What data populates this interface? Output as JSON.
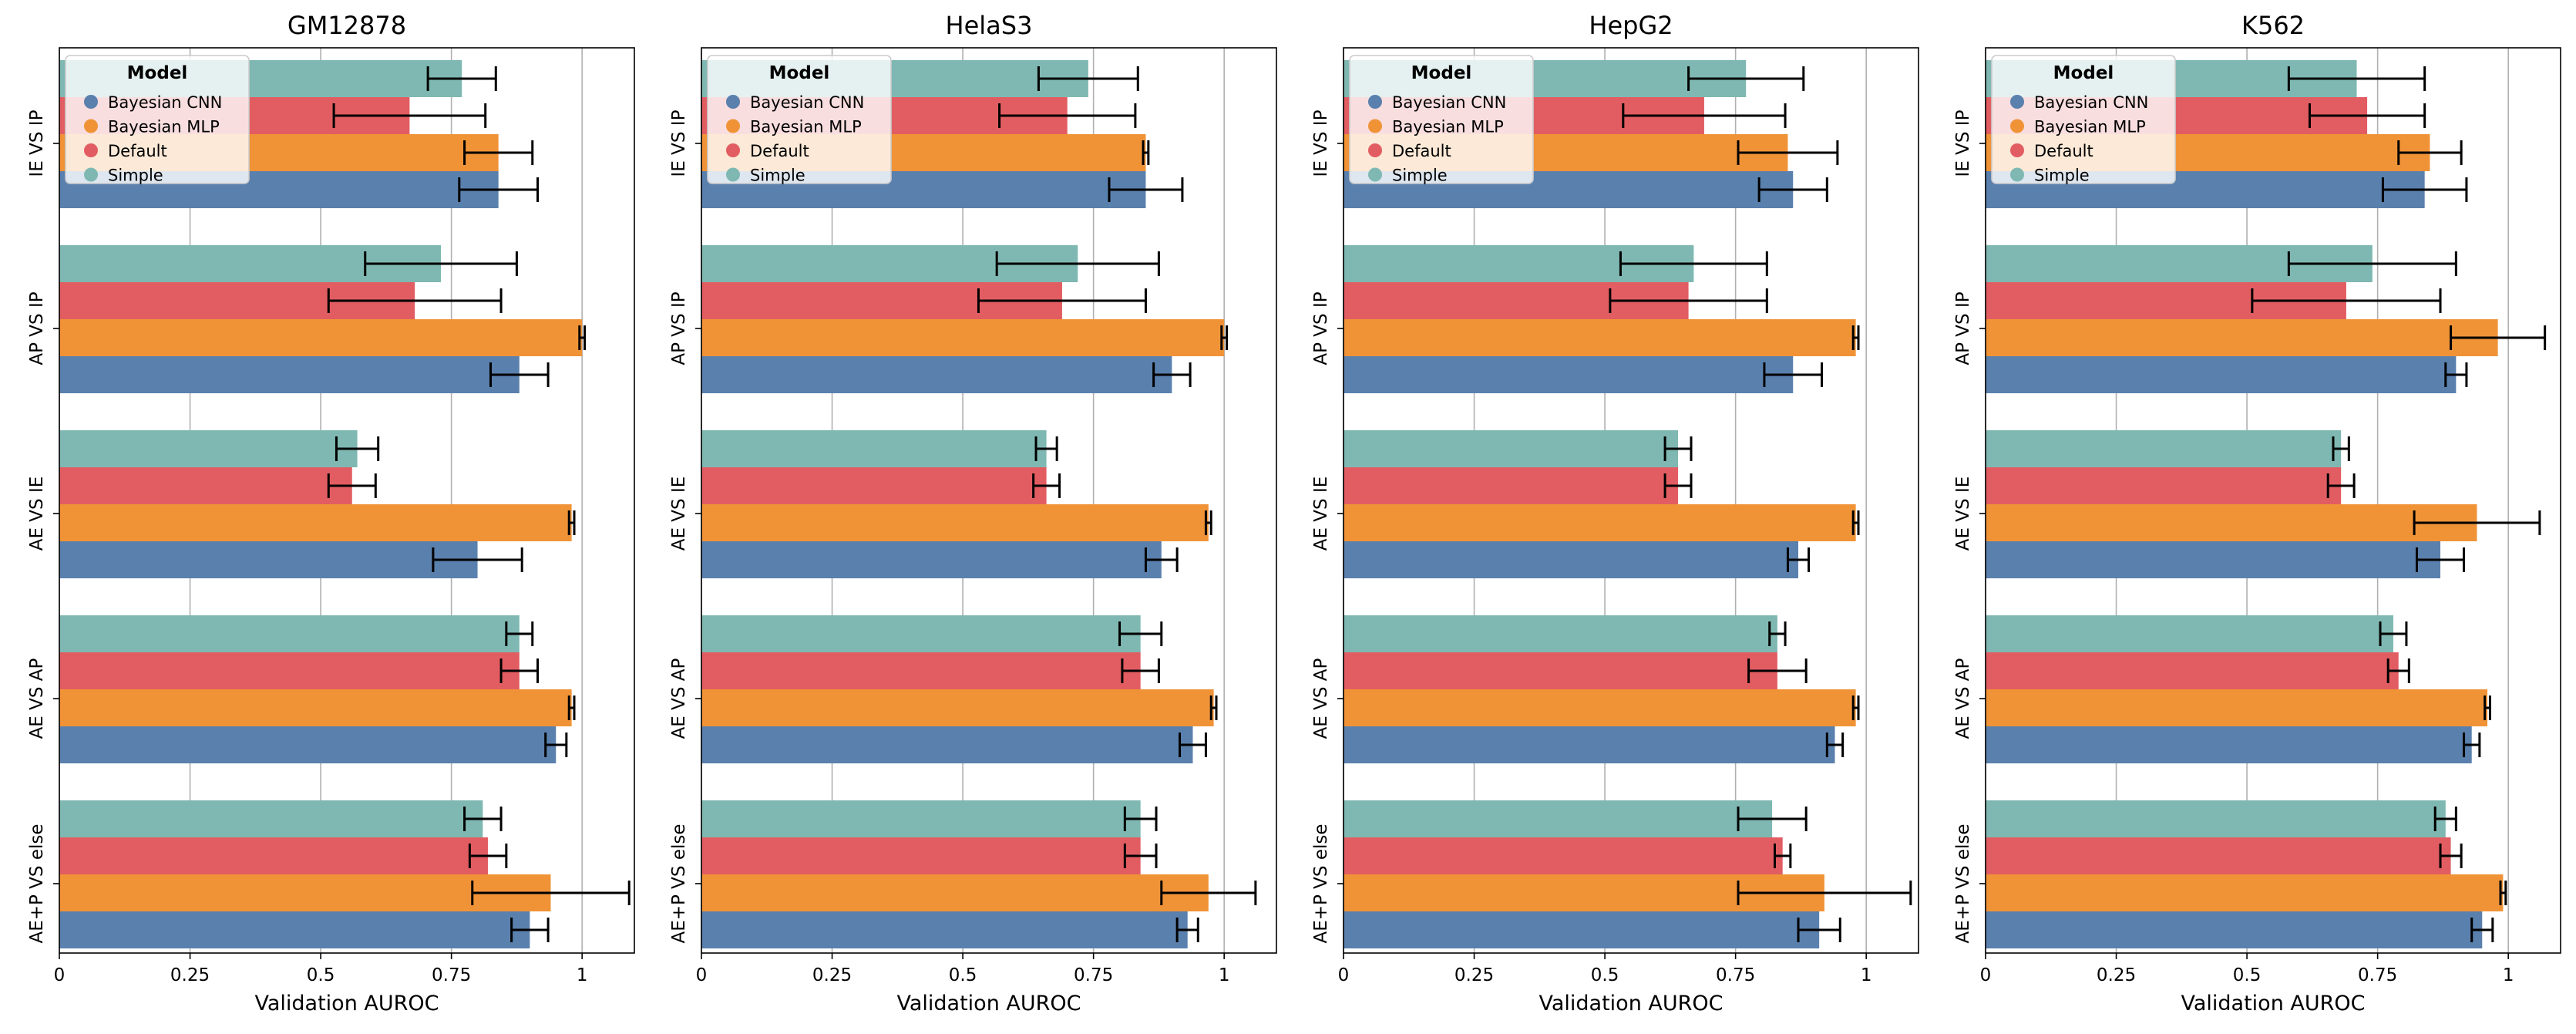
{
  "figure": {
    "xlabel": "Validation AUROC",
    "xlim": [
      0,
      1.1
    ],
    "xticks": [
      0,
      0.25,
      0.5,
      0.75,
      1
    ],
    "xtick_labels": [
      "0",
      "0.25",
      "0.5",
      "0.75",
      "1"
    ],
    "categories": [
      "IE VS IP",
      "AP VS IP",
      "AE VS IE",
      "AE VS AP",
      "AE+P VS else"
    ],
    "legend_title": "Model",
    "models": [
      "Bayesian CNN",
      "Bayesian MLP",
      "Default",
      "Simple"
    ],
    "colors": {
      "Bayesian CNN": "#5a80ad",
      "Bayesian MLP": "#f09337",
      "Default": "#e25d62",
      "Simple": "#7fb8b2"
    },
    "legend_placement": "upper-left",
    "grid": "vertical"
  },
  "chart_data": [
    {
      "type": "bar",
      "orientation": "horizontal",
      "title": "GM12878",
      "xlabel": "Validation AUROC",
      "xlim": [
        0,
        1.1
      ],
      "categories": [
        "IE VS IP",
        "AP VS IP",
        "AE VS IE",
        "AE VS AP",
        "AE+P VS else"
      ],
      "series": [
        {
          "name": "Simple",
          "values": [
            0.77,
            0.73,
            0.57,
            0.88,
            0.81
          ],
          "errors": [
            0.065,
            0.145,
            0.04,
            0.025,
            0.035
          ]
        },
        {
          "name": "Default",
          "values": [
            0.67,
            0.68,
            0.56,
            0.88,
            0.82
          ],
          "errors": [
            0.145,
            0.165,
            0.045,
            0.035,
            0.035
          ]
        },
        {
          "name": "Bayesian MLP",
          "values": [
            0.84,
            1.0,
            0.98,
            0.98,
            0.94
          ],
          "errors": [
            0.065,
            0.005,
            0.005,
            0.005,
            0.15
          ]
        },
        {
          "name": "Bayesian CNN",
          "values": [
            0.84,
            0.88,
            0.8,
            0.95,
            0.9
          ],
          "errors": [
            0.075,
            0.055,
            0.085,
            0.02,
            0.035
          ]
        }
      ]
    },
    {
      "type": "bar",
      "orientation": "horizontal",
      "title": "HelaS3",
      "xlabel": "Validation AUROC",
      "xlim": [
        0,
        1.1
      ],
      "categories": [
        "IE VS IP",
        "AP VS IP",
        "AE VS IE",
        "AE VS AP",
        "AE+P VS else"
      ],
      "series": [
        {
          "name": "Simple",
          "values": [
            0.74,
            0.72,
            0.66,
            0.84,
            0.84
          ],
          "errors": [
            0.095,
            0.155,
            0.02,
            0.04,
            0.03
          ]
        },
        {
          "name": "Default",
          "values": [
            0.7,
            0.69,
            0.66,
            0.84,
            0.84
          ],
          "errors": [
            0.13,
            0.16,
            0.025,
            0.035,
            0.03
          ]
        },
        {
          "name": "Bayesian MLP",
          "values": [
            0.85,
            1.0,
            0.97,
            0.98,
            0.97
          ],
          "errors": [
            0.005,
            0.005,
            0.005,
            0.005,
            0.09
          ]
        },
        {
          "name": "Bayesian CNN",
          "values": [
            0.85,
            0.9,
            0.88,
            0.94,
            0.93
          ],
          "errors": [
            0.07,
            0.035,
            0.03,
            0.025,
            0.02
          ]
        }
      ]
    },
    {
      "type": "bar",
      "orientation": "horizontal",
      "title": "HepG2",
      "xlabel": "Validation AUROC",
      "xlim": [
        0,
        1.1
      ],
      "categories": [
        "IE VS IP",
        "AP VS IP",
        "AE VS IE",
        "AE VS AP",
        "AE+P VS else"
      ],
      "series": [
        {
          "name": "Simple",
          "values": [
            0.77,
            0.67,
            0.64,
            0.83,
            0.82
          ],
          "errors": [
            0.11,
            0.14,
            0.025,
            0.015,
            0.065
          ]
        },
        {
          "name": "Default",
          "values": [
            0.69,
            0.66,
            0.64,
            0.83,
            0.84
          ],
          "errors": [
            0.155,
            0.15,
            0.025,
            0.055,
            0.015
          ]
        },
        {
          "name": "Bayesian MLP",
          "values": [
            0.85,
            0.98,
            0.98,
            0.98,
            0.92
          ],
          "errors": [
            0.095,
            0.005,
            0.005,
            0.005,
            0.165
          ]
        },
        {
          "name": "Bayesian CNN",
          "values": [
            0.86,
            0.86,
            0.87,
            0.94,
            0.91
          ],
          "errors": [
            0.065,
            0.055,
            0.02,
            0.015,
            0.04
          ]
        }
      ]
    },
    {
      "type": "bar",
      "orientation": "horizontal",
      "title": "K562",
      "xlabel": "Validation AUROC",
      "xlim": [
        0,
        1.1
      ],
      "categories": [
        "IE VS IP",
        "AP VS IP",
        "AE VS IE",
        "AE VS AP",
        "AE+P VS else"
      ],
      "series": [
        {
          "name": "Simple",
          "values": [
            0.71,
            0.74,
            0.68,
            0.78,
            0.88
          ],
          "errors": [
            0.13,
            0.16,
            0.015,
            0.025,
            0.02
          ]
        },
        {
          "name": "Default",
          "values": [
            0.73,
            0.69,
            0.68,
            0.79,
            0.89
          ],
          "errors": [
            0.11,
            0.18,
            0.025,
            0.02,
            0.02
          ]
        },
        {
          "name": "Bayesian MLP",
          "values": [
            0.85,
            0.98,
            0.94,
            0.96,
            0.99
          ],
          "errors": [
            0.06,
            0.09,
            0.12,
            0.005,
            0.005
          ]
        },
        {
          "name": "Bayesian CNN",
          "values": [
            0.84,
            0.9,
            0.87,
            0.93,
            0.95
          ],
          "errors": [
            0.08,
            0.02,
            0.045,
            0.015,
            0.02
          ]
        }
      ]
    }
  ]
}
